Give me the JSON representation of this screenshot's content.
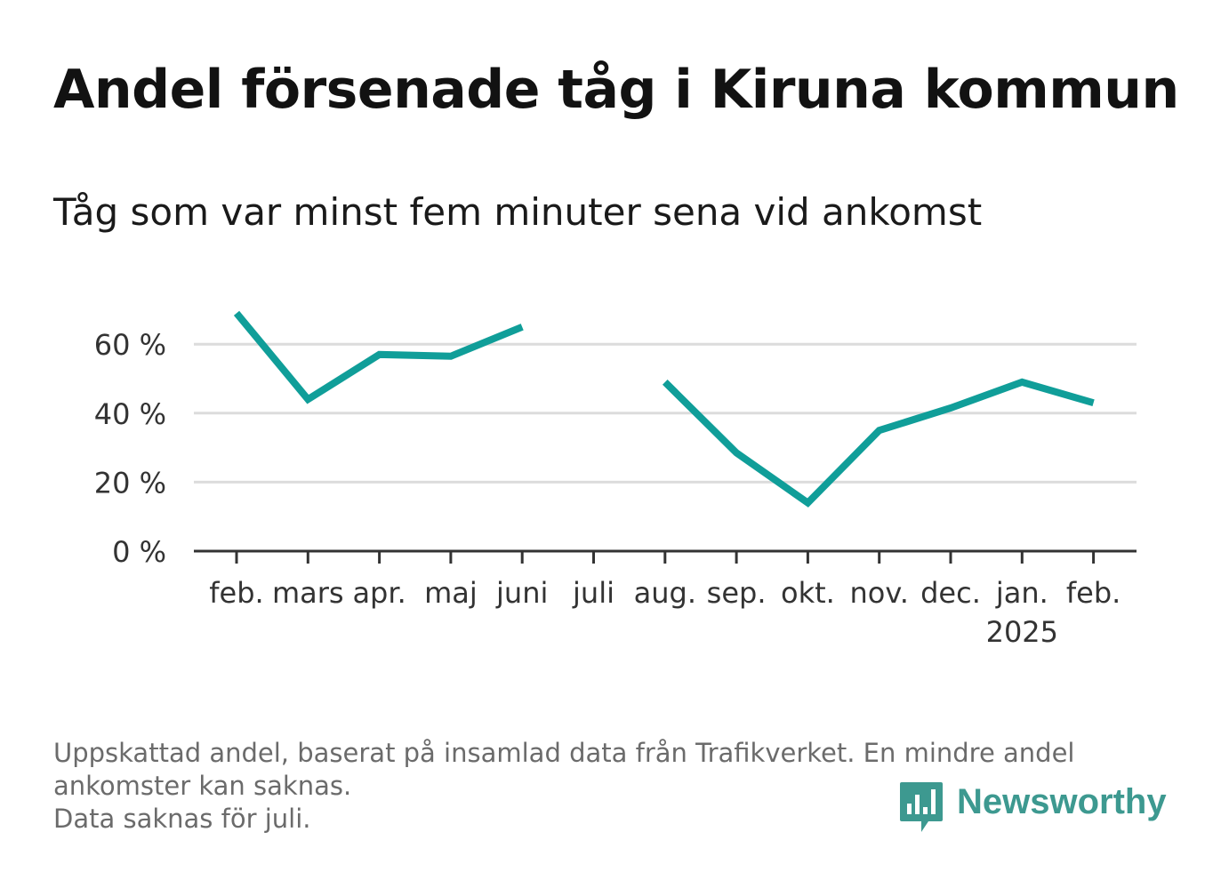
{
  "title": "Andel försenade tåg i Kiruna kommun",
  "subtitle": "Tåg som var minst fem minuter sena vid ankomst",
  "footer": {
    "note1": "Uppskattad andel, baserat på insamlad data från Trafikverket. En mindre andel ankomster kan saknas.",
    "note2": "Data saknas för juli."
  },
  "brand": {
    "name": "Newsworthy",
    "color": "#3d9990"
  },
  "colors": {
    "line": "#109e99",
    "grid": "#dcdcdc",
    "axis": "#333333",
    "tick_text": "#333333"
  },
  "chart_data": {
    "type": "line",
    "categories": [
      "feb.",
      "mars",
      "apr.",
      "maj",
      "juni",
      "juli",
      "aug.",
      "sep.",
      "okt.",
      "nov.",
      "dec.",
      "jan.",
      "feb."
    ],
    "year_labels": {
      "11": "2025"
    },
    "series": [
      {
        "values": [
          69,
          44,
          57,
          56.5,
          65,
          null,
          49,
          28.5,
          14,
          35,
          41.5,
          49,
          43
        ]
      }
    ],
    "ylim": [
      0,
      70
    ],
    "yticks": [
      0,
      20,
      40,
      60
    ],
    "ytick_labels": [
      "0 %",
      "20 %",
      "40 %",
      "60 %"
    ],
    "xlabel": "",
    "ylabel": "",
    "grid": true,
    "legend": "none"
  }
}
